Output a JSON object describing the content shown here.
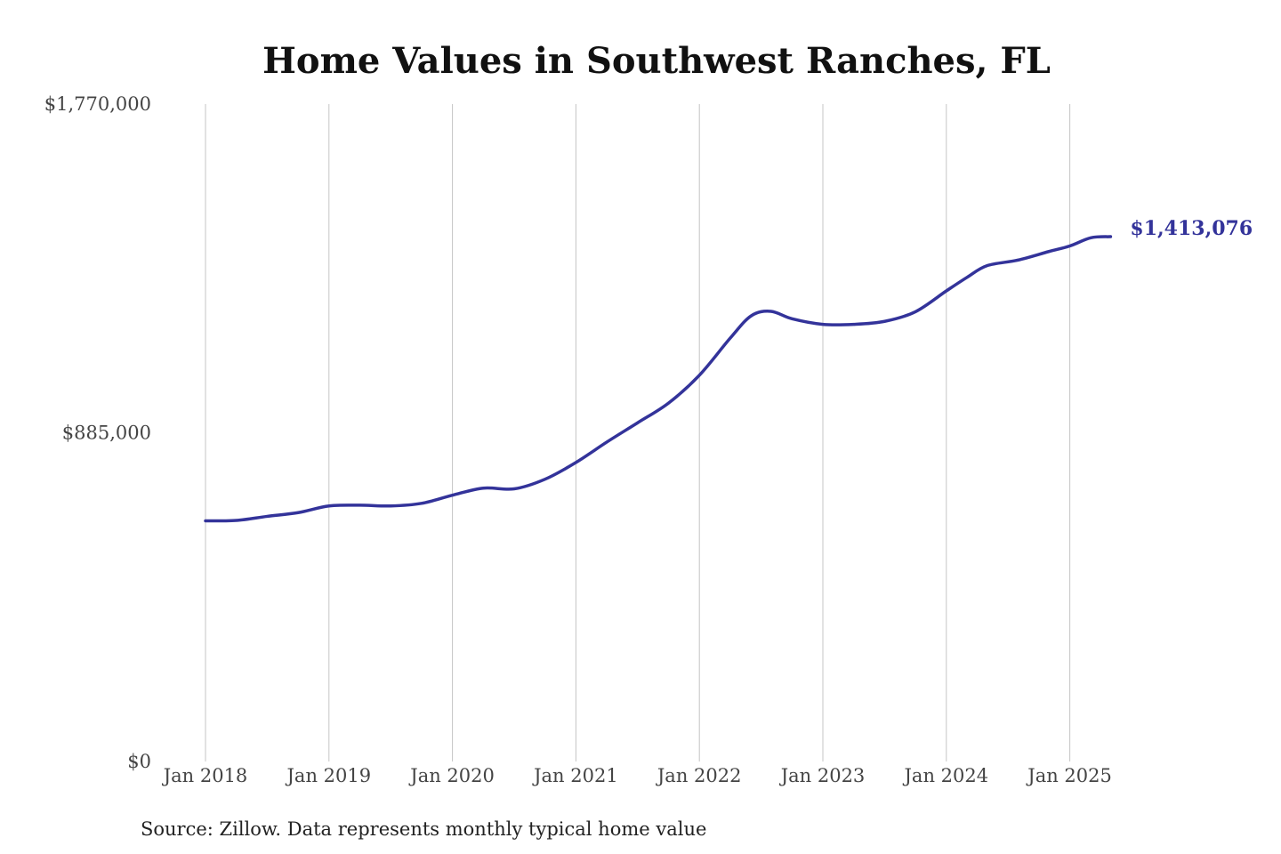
{
  "colors": {
    "series": "#33339a",
    "grid": "#c4c4c4",
    "text": "#444444",
    "title": "#111111"
  },
  "footer": {
    "source": "Source: Zillow. Data represents monthly typical home value"
  },
  "chart_data": {
    "type": "line",
    "title": "Home Values in Southwest Ranches, FL",
    "xlabel": "",
    "ylabel": "",
    "x_unit": "year",
    "xlim": [
      2018.0,
      2025.33
    ],
    "ylim": [
      0,
      1770000
    ],
    "y_ticks": [
      {
        "value": 0,
        "label": "$0"
      },
      {
        "value": 885000,
        "label": "$885,000"
      },
      {
        "value": 1770000,
        "label": "$1,770,000"
      }
    ],
    "x_ticks": [
      {
        "value": 2018,
        "label": "Jan 2018"
      },
      {
        "value": 2019,
        "label": "Jan 2019"
      },
      {
        "value": 2020,
        "label": "Jan 2020"
      },
      {
        "value": 2021,
        "label": "Jan 2021"
      },
      {
        "value": 2022,
        "label": "Jan 2022"
      },
      {
        "value": 2023,
        "label": "Jan 2023"
      },
      {
        "value": 2024,
        "label": "Jan 2024"
      },
      {
        "value": 2025,
        "label": "Jan 2025"
      }
    ],
    "grid": {
      "vertical": true,
      "horizontal": false
    },
    "legend": "none",
    "end_label": "$1,413,076",
    "series": [
      {
        "x": [
          2018.0,
          2018.25,
          2018.5,
          2018.75,
          2019.0,
          2019.25,
          2019.5,
          2019.75,
          2020.0,
          2020.25,
          2020.5,
          2020.75,
          2021.0,
          2021.25,
          2021.5,
          2021.75,
          2022.0,
          2022.25,
          2022.42,
          2022.58,
          2022.75,
          2023.0,
          2023.25,
          2023.5,
          2023.75,
          2024.0,
          2024.17,
          2024.33,
          2024.58,
          2024.83,
          2025.0,
          2025.17,
          2025.33
        ],
        "values": [
          648000,
          649000,
          660000,
          670000,
          688000,
          690000,
          688000,
          695000,
          717000,
          736000,
          734000,
          760000,
          805000,
          860000,
          912000,
          965000,
          1040000,
          1140000,
          1200000,
          1212000,
          1192000,
          1177000,
          1177000,
          1185000,
          1211000,
          1267000,
          1304000,
          1335000,
          1350000,
          1373000,
          1388000,
          1410000,
          1413076
        ]
      }
    ]
  }
}
